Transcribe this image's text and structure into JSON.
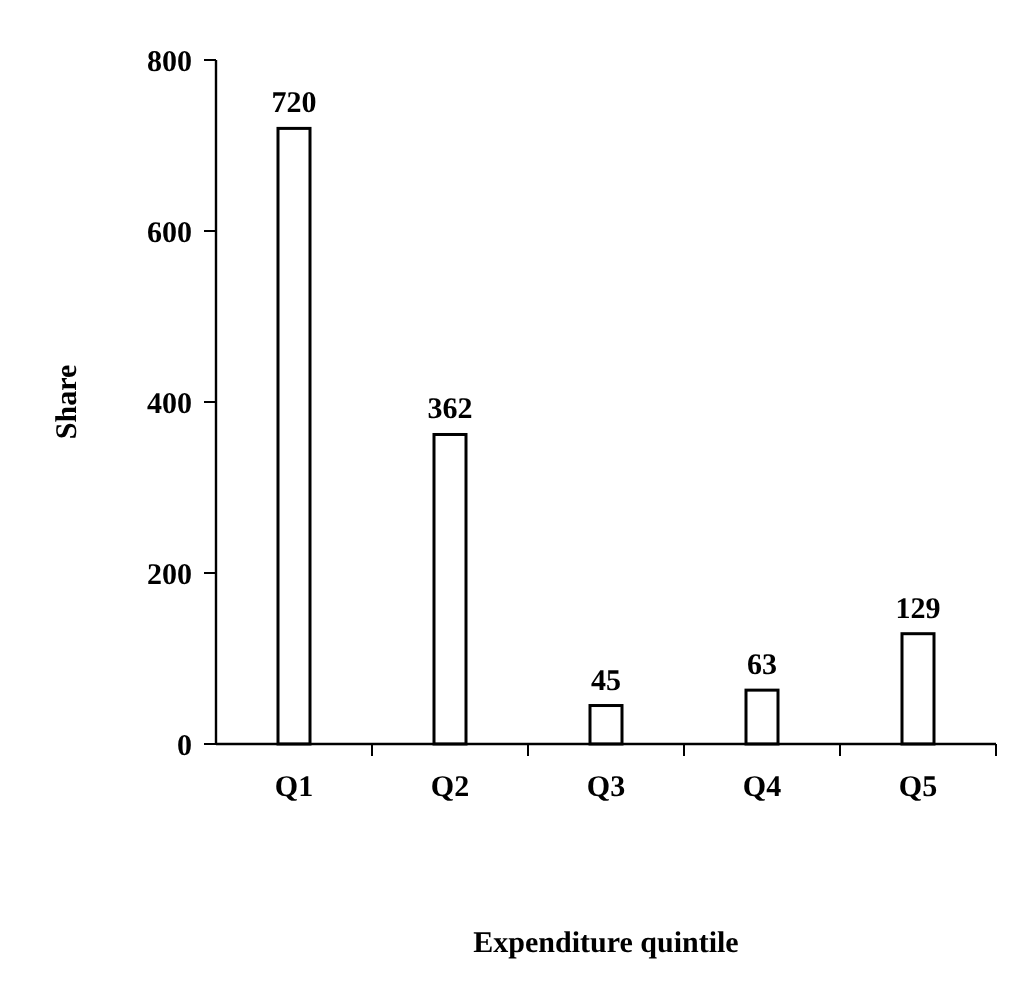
{
  "chart_data": {
    "type": "bar",
    "xlabel": "Expenditure quintile",
    "ylabel": "Share",
    "categories": [
      "Q1",
      "Q2",
      "Q3",
      "Q4",
      "Q5"
    ],
    "values": [
      720,
      362,
      45,
      63,
      129
    ],
    "color": "#ffffff",
    "data_labels": true,
    "ylim": [
      0,
      800
    ],
    "yticks": [
      0,
      200,
      400,
      600,
      800
    ],
    "grid": false
  }
}
